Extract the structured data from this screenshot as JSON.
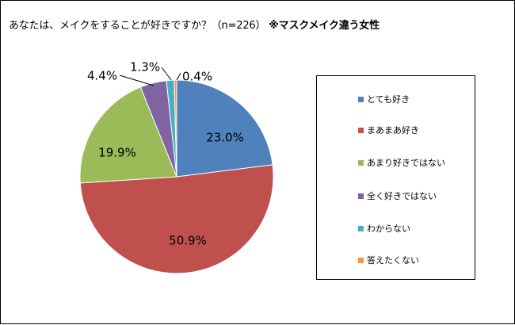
{
  "title": {
    "main": "あなたは、メイクをすることが好きですか？（n=226）",
    "sub": "※マスクメイク違う女性"
  },
  "chart_data": {
    "type": "pie",
    "title": "あなたは、メイクをすることが好きですか？（n=226） ※マスクメイク違う女性",
    "slices": [
      {
        "label": "とても好き",
        "value": 23.0,
        "display": "23.0%",
        "color": "#4f81bd"
      },
      {
        "label": "まあまあ好き",
        "value": 50.9,
        "display": "50.9%",
        "color": "#c0504d"
      },
      {
        "label": "あまり好きではない",
        "value": 19.9,
        "display": "19.9%",
        "color": "#9bbb59"
      },
      {
        "label": "全く好きではない",
        "value": 4.4,
        "display": "4.4%",
        "color": "#8064a2"
      },
      {
        "label": "わからない",
        "value": 1.3,
        "display": "1.3%",
        "color": "#4bacc6"
      },
      {
        "label": "答えたくない",
        "value": 0.4,
        "display": "0.4%",
        "color": "#f79646"
      }
    ],
    "legend_position": "right"
  }
}
